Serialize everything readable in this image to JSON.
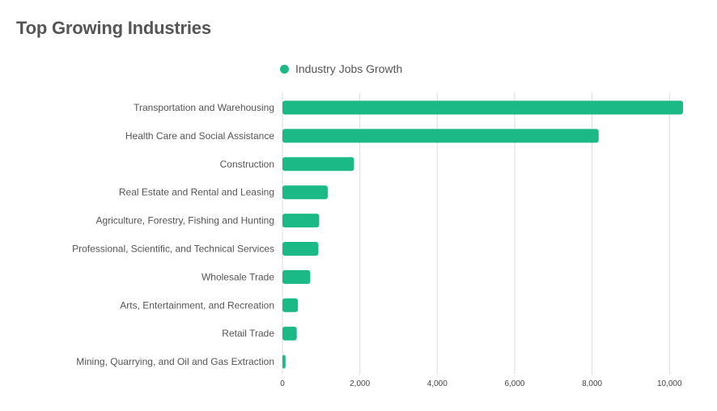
{
  "page_title": "Top Growing Industries",
  "legend": {
    "label": "Industry Jobs Growth",
    "color": "#1bb985"
  },
  "chart_data": {
    "type": "bar",
    "orientation": "horizontal",
    "title": "Top Growing Industries",
    "categories": [
      "Transportation and Warehousing",
      "Health Care and Social Assistance",
      "Construction",
      "Real Estate and Rental and Leasing",
      "Agriculture, Forestry, Fishing and Hunting",
      "Professional, Scientific, and Technical Services",
      "Wholesale Trade",
      "Arts, Entertainment, and Recreation",
      "Retail Trade",
      "Mining, Quarrying, and Oil and Gas Extraction"
    ],
    "series": [
      {
        "name": "Industry Jobs Growth",
        "color": "#1bb985",
        "values": [
          10350,
          8170,
          1850,
          1170,
          950,
          930,
          720,
          400,
          370,
          80
        ]
      }
    ],
    "xlim": [
      0,
      10350
    ],
    "xticks": [
      0,
      2000,
      4000,
      6000,
      8000,
      10000
    ],
    "xtick_labels": [
      "0",
      "2,000",
      "4,000",
      "6,000",
      "8,000",
      "10,000"
    ],
    "grid": true,
    "legend_position": "top-center",
    "gridline_color": "#dddddd"
  }
}
